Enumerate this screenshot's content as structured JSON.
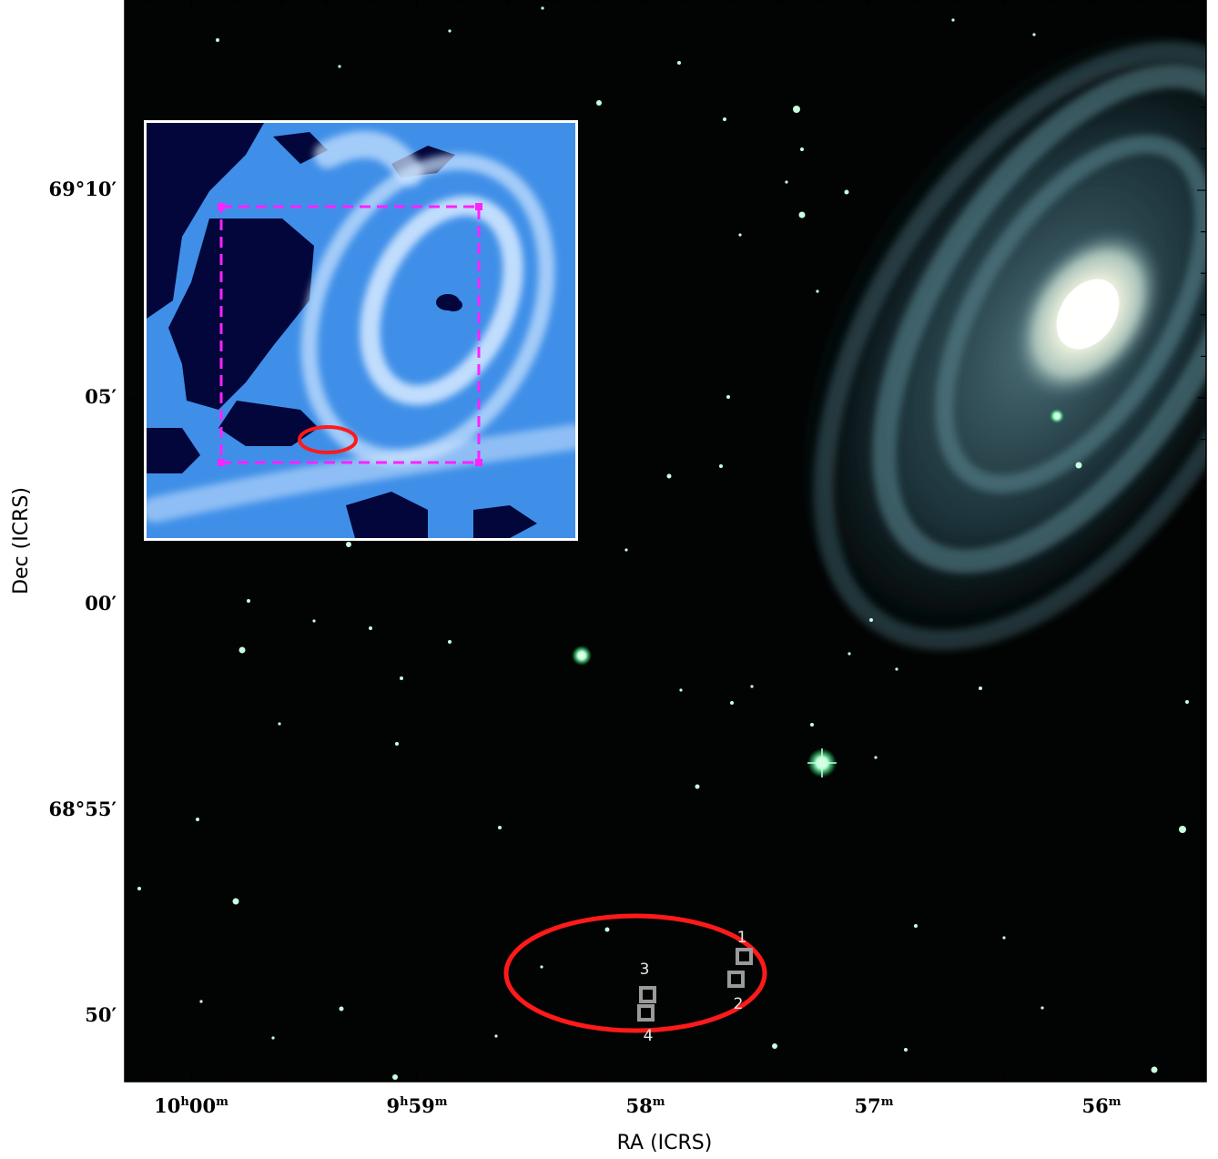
{
  "axes": {
    "xlabel": "RA (ICRS)",
    "ylabel": "Dec (ICRS)",
    "ra_ticks": [
      {
        "h": "10",
        "hsup": "h",
        "m": "00",
        "msup": "m"
      },
      {
        "h": "9",
        "hsup": "h",
        "m": "59",
        "msup": "m"
      },
      {
        "h": "",
        "hsup": "",
        "m": "58",
        "msup": "m"
      },
      {
        "h": "",
        "hsup": "",
        "m": "57",
        "msup": "m"
      },
      {
        "h": "",
        "hsup": "",
        "m": "56",
        "msup": "m"
      }
    ],
    "dec_ticks": [
      "69°10′",
      "05′",
      "00′",
      "68°55′",
      "50′"
    ]
  },
  "sources": [
    {
      "label": "1"
    },
    {
      "label": "2"
    },
    {
      "label": "3"
    },
    {
      "label": "4"
    }
  ],
  "colors": {
    "frame": "#000000",
    "sky": "#020403",
    "region_ellipse": "#ff1a1a",
    "inset_box": "#ff22ff",
    "source_box": "#9a9a9a",
    "galaxy_core": "#fffef0",
    "galaxy_arms": "#5f8f9a",
    "inset_background": "#02063a",
    "inset_emission": "#3f9fff"
  }
}
